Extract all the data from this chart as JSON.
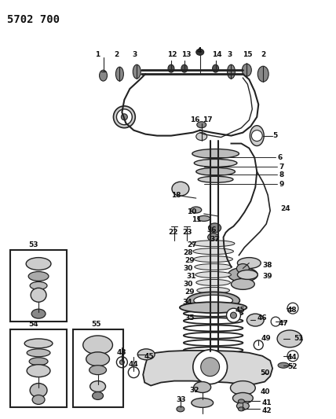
{
  "title": "5702 700",
  "bg_color": "#ffffff",
  "line_color": "#222222",
  "text_color": "#111111",
  "title_fontsize": 10,
  "label_fontsize": 6.5,
  "fig_width": 4.28,
  "fig_height": 5.33,
  "dpi": 100
}
